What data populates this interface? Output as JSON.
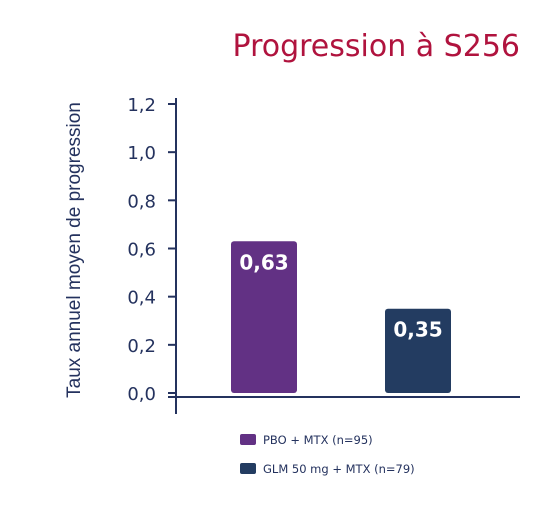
{
  "chart_data": {
    "type": "bar",
    "title": "Progression à S256",
    "ylabel": "Taux annuel moyen de progression",
    "ylim": [
      0,
      1.2
    ],
    "yticks": [
      0.0,
      0.2,
      0.4,
      0.6,
      0.8,
      1.0,
      1.2
    ],
    "ytick_labels": [
      "0,0",
      "0,2",
      "0,4",
      "0,6",
      "0,8",
      "1,0",
      "1,2"
    ],
    "series": [
      {
        "name": "PBO + MTX (n=95)",
        "values": [
          0.63
        ],
        "label": "0,63",
        "color": "#623184"
      },
      {
        "name": "GLM 50 mg + MTX (n=79)",
        "values": [
          0.35
        ],
        "label": "0,35",
        "color": "#233c61"
      }
    ],
    "legend_position": "bottom",
    "grid": false,
    "axis_color": "#24325e"
  }
}
